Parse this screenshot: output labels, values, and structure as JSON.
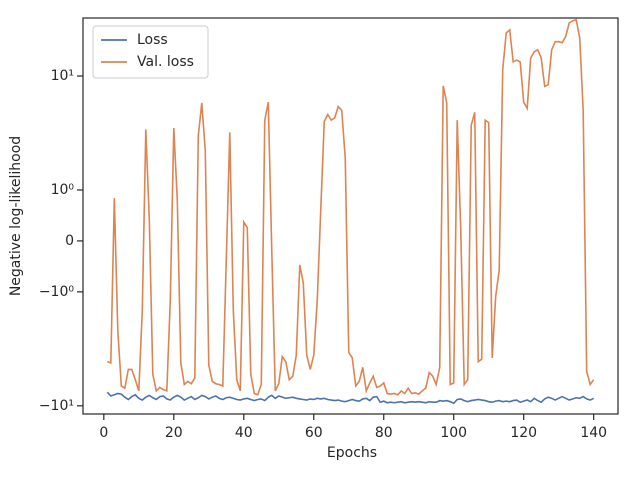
{
  "chart_data": {
    "type": "line",
    "yscale": "symlog",
    "linthresh": 1,
    "xlabel": "Epochs",
    "ylabel": "Negative log-likelihood",
    "x": [
      1,
      2,
      3,
      4,
      5,
      6,
      7,
      8,
      9,
      10,
      11,
      12,
      13,
      14,
      15,
      16,
      17,
      18,
      19,
      20,
      21,
      22,
      23,
      24,
      25,
      26,
      27,
      28,
      29,
      30,
      31,
      32,
      33,
      34,
      35,
      36,
      37,
      38,
      39,
      40,
      41,
      42,
      43,
      44,
      45,
      46,
      47,
      48,
      49,
      50,
      51,
      52,
      53,
      54,
      55,
      56,
      57,
      58,
      59,
      60,
      61,
      62,
      63,
      64,
      65,
      66,
      67,
      68,
      69,
      70,
      71,
      72,
      73,
      74,
      75,
      76,
      77,
      78,
      79,
      80,
      81,
      82,
      83,
      84,
      85,
      86,
      87,
      88,
      89,
      90,
      91,
      92,
      93,
      94,
      95,
      96,
      97,
      98,
      99,
      100,
      101,
      102,
      103,
      104,
      105,
      106,
      107,
      108,
      109,
      110,
      111,
      112,
      113,
      114,
      115,
      116,
      117,
      118,
      119,
      120,
      121,
      122,
      123,
      124,
      125,
      126,
      127,
      128,
      129,
      130,
      131,
      132,
      133,
      134,
      135,
      136,
      137,
      138,
      139,
      140
    ],
    "series": [
      {
        "name": "Loss",
        "color": "#4c72b0",
        "values": [
          -7.6,
          -8.2,
          -8.0,
          -7.8,
          -7.9,
          -8.4,
          -8.8,
          -8.3,
          -8.0,
          -8.6,
          -8.9,
          -8.4,
          -8.1,
          -8.5,
          -8.8,
          -8.3,
          -8.2,
          -8.7,
          -8.9,
          -8.4,
          -8.1,
          -8.4,
          -8.9,
          -8.6,
          -8.3,
          -8.8,
          -8.5,
          -8.1,
          -8.3,
          -8.7,
          -8.4,
          -8.2,
          -8.6,
          -8.8,
          -8.5,
          -8.4,
          -8.6,
          -8.8,
          -8.9,
          -8.7,
          -8.6,
          -8.8,
          -9.0,
          -8.8,
          -8.7,
          -9.0,
          -8.4,
          -8.1,
          -8.6,
          -8.2,
          -8.4,
          -8.6,
          -8.5,
          -8.4,
          -8.6,
          -8.7,
          -8.8,
          -8.9,
          -8.7,
          -8.8,
          -8.6,
          -8.7,
          -8.6,
          -8.8,
          -8.9,
          -9.0,
          -8.9,
          -9.1,
          -9.2,
          -9.0,
          -8.8,
          -9.0,
          -9.1,
          -8.7,
          -8.6,
          -9.0,
          -8.4,
          -8.3,
          -9.3,
          -9.1,
          -9.4,
          -9.3,
          -9.4,
          -9.3,
          -9.2,
          -9.4,
          -9.3,
          -9.2,
          -9.3,
          -9.2,
          -9.3,
          -9.4,
          -9.2,
          -9.3,
          -9.3,
          -9.0,
          -9.1,
          -9.0,
          -9.2,
          -9.5,
          -8.8,
          -8.7,
          -9.0,
          -9.2,
          -9.0,
          -8.9,
          -8.8,
          -8.9,
          -9.0,
          -9.2,
          -9.3,
          -9.1,
          -9.0,
          -9.2,
          -9.1,
          -9.2,
          -9.0,
          -8.9,
          -9.3,
          -9.1,
          -8.9,
          -9.2,
          -8.6,
          -9.0,
          -9.3,
          -8.7,
          -8.4,
          -8.6,
          -8.9,
          -8.6,
          -8.3,
          -8.6,
          -8.9,
          -8.7,
          -8.5,
          -8.6,
          -8.3,
          -8.7,
          -8.9,
          -8.6
        ]
      },
      {
        "name": "Val. loss",
        "color": "#dd8452",
        "values": [
          -4.1,
          -4.2,
          0.84,
          -2.2,
          -6.7,
          -7.0,
          -4.8,
          -4.8,
          -5.9,
          -7.4,
          -1.44,
          3.4,
          0.41,
          -5.3,
          -7.4,
          -6.9,
          -7.2,
          -7.4,
          -1.18,
          3.5,
          0.8,
          -4.2,
          -6.5,
          -6.1,
          -6.4,
          -5.7,
          3.0,
          5.8,
          2.2,
          -4.4,
          -6.1,
          -6.4,
          -6.5,
          -6.7,
          -0.37,
          3.2,
          -1.44,
          -5.9,
          -7.4,
          0.37,
          0.26,
          -5.3,
          -7.8,
          -8.0,
          -6.5,
          4.1,
          5.9,
          -0.18,
          -7.4,
          -6.4,
          -3.7,
          -4.1,
          -5.9,
          -5.5,
          -3.6,
          -0.47,
          -0.82,
          -3.6,
          -4.8,
          -3.6,
          -1.18,
          0.61,
          4.0,
          4.6,
          4.1,
          4.3,
          5.4,
          5.0,
          1.9,
          -3.4,
          -3.8,
          -6.7,
          -6.1,
          -4.6,
          -7.4,
          -6.3,
          -5.5,
          -6.9,
          -6.7,
          -6.3,
          -7.8,
          -7.9,
          -7.8,
          -8.0,
          -7.4,
          -7.8,
          -7.0,
          -7.8,
          -7.7,
          -7.9,
          -7.4,
          -7.0,
          -5.1,
          -5.5,
          -6.5,
          -4.6,
          8.2,
          5.8,
          -6.5,
          -6.3,
          4.1,
          0.24,
          -6.5,
          -5.9,
          3.7,
          4.8,
          -4.1,
          -3.9,
          4.1,
          3.9,
          -3.8,
          -1.09,
          -0.57,
          11.3,
          23.9,
          25.4,
          13.3,
          13.8,
          13.3,
          5.9,
          5.2,
          14.4,
          16.3,
          17.0,
          14.4,
          8.1,
          8.4,
          17.0,
          20.0,
          20.0,
          19.6,
          22.2,
          29.2,
          30.5,
          31.2,
          21.7,
          5.0,
          -5.0,
          -6.5,
          -5.9
        ]
      }
    ],
    "xlim": [
      -5.95,
      146.95
    ],
    "xticks": [
      0,
      20,
      40,
      60,
      80,
      100,
      120,
      140
    ],
    "ylim": [
      -11.8,
      32.3
    ],
    "yticks": [
      {
        "value": -10,
        "label": "−10¹"
      },
      {
        "value": -1,
        "label": "−10⁰"
      },
      0,
      {
        "value": 1,
        "label": "10⁰"
      },
      {
        "value": 10,
        "label": "10¹"
      }
    ],
    "grid": false,
    "legend": "upper left"
  }
}
